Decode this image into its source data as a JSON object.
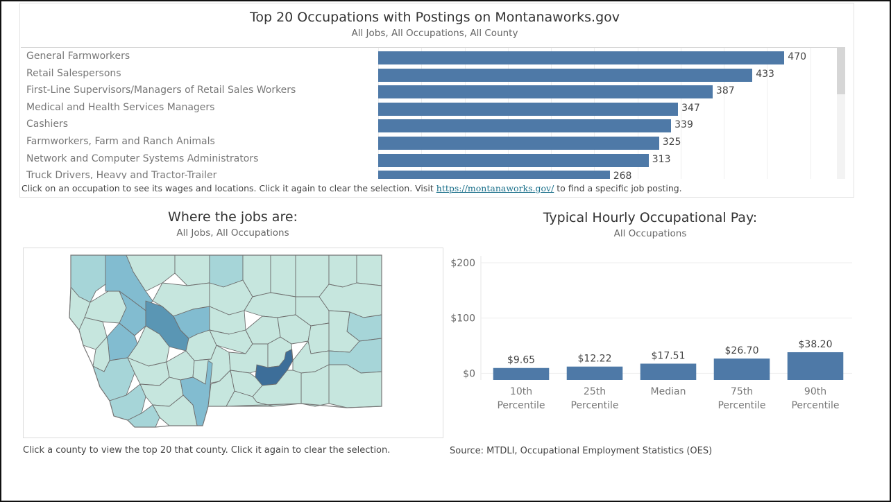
{
  "top": {
    "title": "Top 20 Occupations with Postings on Montanaworks.gov",
    "subtitle": "All Jobs, All Occupations, All County",
    "instruction_pre": "Click on an occupation to see  its wages and locations. Click it again to clear the selection. Visit ",
    "instruction_link": "https://montanaworks.gov/",
    "instruction_post": " to find a specific job posting."
  },
  "map": {
    "title": "Where the jobs are:",
    "subtitle": "All Jobs, All Occupations",
    "instruction": "Click a county to view the top 20  that county. Click it again to clear the selection.",
    "colors": {
      "base": "#c6e6de",
      "light": "#a6d5d8",
      "mid": "#82bcd0",
      "strong": "#5a96b4",
      "dark": "#3d6e99",
      "border": "#6e6e6e"
    }
  },
  "pay": {
    "title": "Typical Hourly Occupational Pay:",
    "subtitle": "All Occupations",
    "source": "Source: MTDLI, Occupational Employment Statistics (OES)"
  },
  "chart_data": [
    {
      "type": "bar",
      "orientation": "horizontal",
      "categories": [
        "General Farmworkers",
        "Retail Salespersons",
        "First-Line Supervisors/Managers of Retail Sales Workers",
        "Medical and Health Services Managers",
        "Cashiers",
        "Farmworkers, Farm and Ranch Animals",
        "Network and Computer Systems Administrators",
        "Truck Drivers, Heavy and Tractor-Trailer"
      ],
      "values": [
        470,
        433,
        387,
        347,
        339,
        325,
        313,
        268
      ],
      "value_labels": [
        "470",
        "433",
        "387",
        "347",
        "339",
        "325",
        "313",
        "268"
      ],
      "xlim": [
        0,
        530
      ],
      "grid": true,
      "color": "#4e79a7"
    },
    {
      "type": "bar",
      "categories": [
        "10th\nPercentile",
        "25th\nPercentile",
        "Median",
        "75th\nPercentile",
        "90th\nPercentile"
      ],
      "values": [
        9.65,
        12.22,
        17.51,
        26.7,
        38.2
      ],
      "value_labels": [
        "$9.65",
        "$12.22",
        "$17.51",
        "$26.70",
        "$38.20"
      ],
      "yticks": [
        0,
        100,
        200
      ],
      "ytick_labels": [
        "$0",
        "$100",
        "$200"
      ],
      "ylim": [
        -12,
        200
      ],
      "grid": true,
      "color": "#4e79a7"
    }
  ]
}
